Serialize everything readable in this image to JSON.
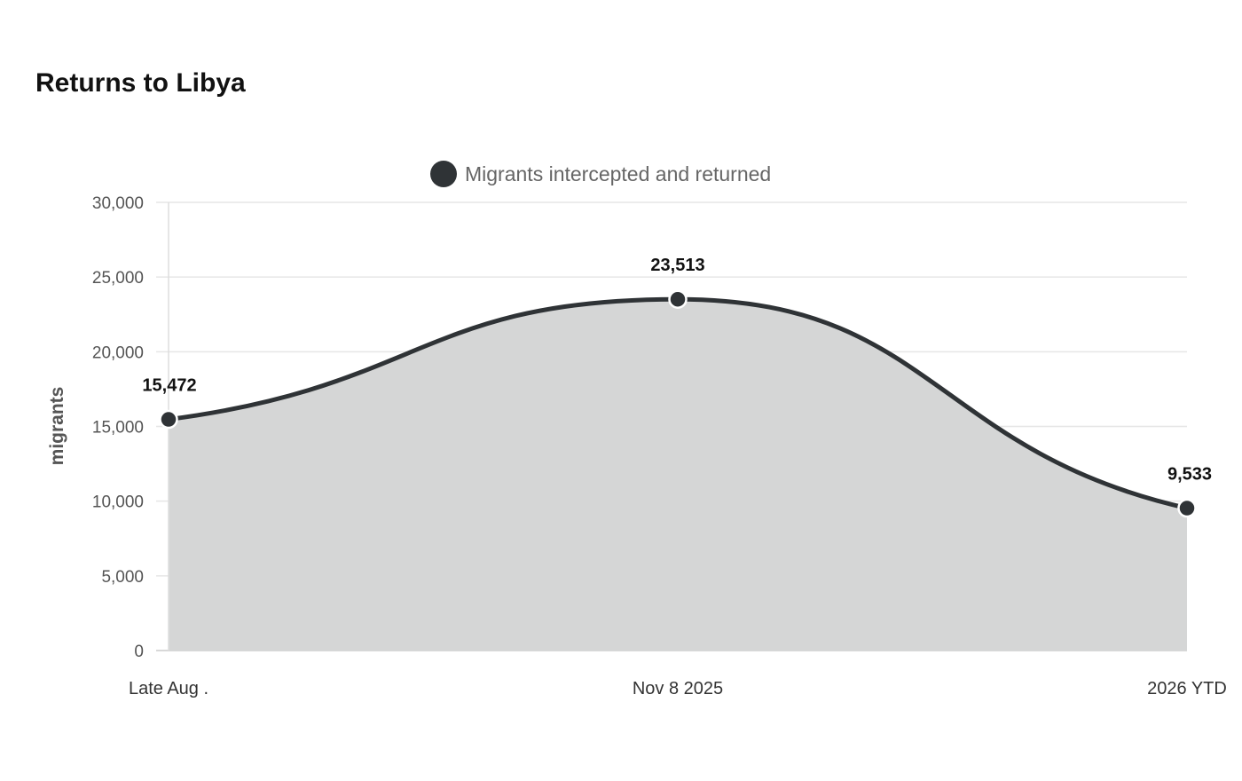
{
  "chart_data": {
    "type": "area",
    "title": "Returns to Libya",
    "ylabel": "migrants",
    "xlabel": "",
    "categories": [
      "Late Aug .",
      "Nov 8 2025",
      "2026 YTD"
    ],
    "series": [
      {
        "name": "Migrants intercepted and returned",
        "values": [
          15472,
          23513,
          9533
        ],
        "labels": [
          "15,472",
          "23,513",
          "9,533"
        ],
        "color": "#2f3336",
        "fill": "#d5d6d6"
      }
    ],
    "ylim": [
      0,
      30000
    ],
    "yticks": [
      0,
      5000,
      10000,
      15000,
      20000,
      25000,
      30000
    ],
    "ytick_labels": [
      "0",
      "5,000",
      "10,000",
      "15,000",
      "20,000",
      "25,000",
      "30,000"
    ],
    "grid": true,
    "legend": "top-center",
    "smooth": true
  }
}
